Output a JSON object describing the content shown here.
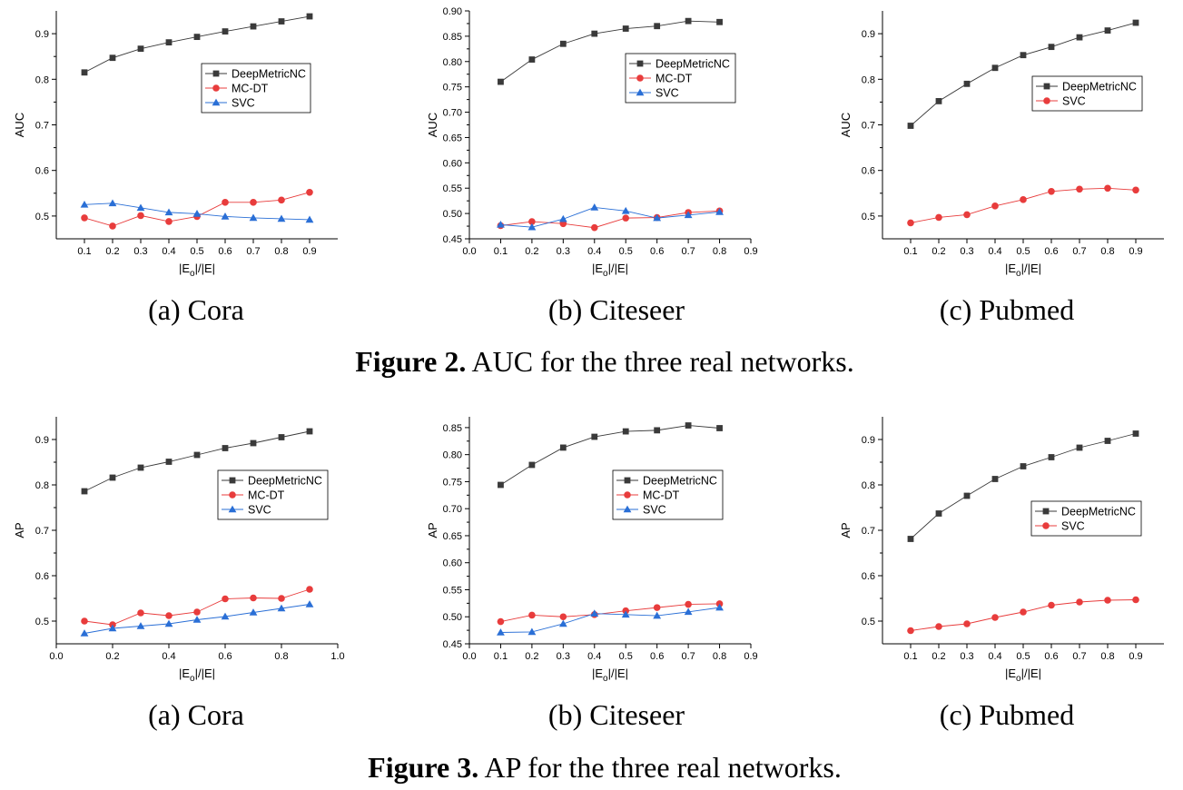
{
  "colors": {
    "DeepMetricNC": "#3a3a3a",
    "MC-DT": "#e83c3c",
    "SVC": "#2a6fd6"
  },
  "figures": [
    {
      "label": "Figure 2.",
      "text": " AUC for the three real networks.",
      "subcaptions": [
        "(a)  Cora",
        "(b)  Citeseer",
        "(c) Pubmed"
      ]
    },
    {
      "label": "Figure 3.",
      "text": " AP for the three real networks.",
      "subcaptions": [
        "(a)  Cora",
        "(b)  Citeseer",
        "(c) Pubmed"
      ]
    }
  ],
  "chart_data": [
    {
      "type": "line",
      "panel": "Figure 2 (a) Cora",
      "ylabel": "AUC",
      "xlabel": "|E_o|/|E|",
      "xlim": [
        0.0,
        1.0
      ],
      "ylim": [
        0.45,
        0.95
      ],
      "xticks": [
        "0.1",
        "0.2",
        "0.3",
        "0.4",
        "0.5",
        "0.6",
        "0.7",
        "0.8",
        "0.9"
      ],
      "yticks": [
        "0.5",
        "0.6",
        "0.7",
        "0.8",
        "0.9"
      ],
      "legend": "center-right",
      "x": [
        0.1,
        0.2,
        0.3,
        0.4,
        0.5,
        0.6,
        0.7,
        0.8,
        0.9
      ],
      "series": [
        {
          "name": "DeepMetricNC",
          "marker": "square",
          "values": [
            0.815,
            0.847,
            0.867,
            0.881,
            0.893,
            0.905,
            0.916,
            0.927,
            0.938
          ]
        },
        {
          "name": "MC-DT",
          "marker": "circle",
          "values": [
            0.496,
            0.478,
            0.501,
            0.488,
            0.499,
            0.53,
            0.53,
            0.535,
            0.552
          ]
        },
        {
          "name": "SVC",
          "marker": "triangle",
          "values": [
            0.525,
            0.528,
            0.518,
            0.508,
            0.505,
            0.499,
            0.496,
            0.494,
            0.492
          ]
        }
      ]
    },
    {
      "type": "line",
      "panel": "Figure 2 (b) Citeseer",
      "ylabel": "AUC",
      "xlabel": "|E_o|/|E|",
      "xlim": [
        0.0,
        0.9
      ],
      "ylim": [
        0.45,
        0.9
      ],
      "xticks": [
        "0.0",
        "0.1",
        "0.2",
        "0.3",
        "0.4",
        "0.5",
        "0.6",
        "0.7",
        "0.8",
        "0.9"
      ],
      "yticks": [
        "0.45",
        "0.50",
        "0.55",
        "0.60",
        "0.65",
        "0.70",
        "0.75",
        "0.80",
        "0.85",
        "0.90"
      ],
      "legend": "center-right",
      "x": [
        0.1,
        0.2,
        0.3,
        0.4,
        0.5,
        0.6,
        0.7,
        0.8
      ],
      "series": [
        {
          "name": "DeepMetricNC",
          "marker": "square",
          "values": [
            0.76,
            0.804,
            0.835,
            0.855,
            0.865,
            0.87,
            0.88,
            0.878
          ]
        },
        {
          "name": "MC-DT",
          "marker": "circle",
          "values": [
            0.476,
            0.484,
            0.48,
            0.472,
            0.491,
            0.492,
            0.502,
            0.505
          ]
        },
        {
          "name": "SVC",
          "marker": "triangle",
          "values": [
            0.478,
            0.473,
            0.489,
            0.512,
            0.505,
            0.491,
            0.497,
            0.503
          ]
        }
      ]
    },
    {
      "type": "line",
      "panel": "Figure 2 (c) Pubmed",
      "ylabel": "AUC",
      "xlabel": "|E_o|/|E|",
      "xlim": [
        0.0,
        1.0
      ],
      "ylim": [
        0.45,
        0.95
      ],
      "xticks": [
        "0.1",
        "0.2",
        "0.3",
        "0.4",
        "0.5",
        "0.6",
        "0.7",
        "0.8",
        "0.9"
      ],
      "yticks": [
        "0.5",
        "0.6",
        "0.7",
        "0.8",
        "0.9"
      ],
      "legend": "upper-right",
      "x": [
        0.1,
        0.2,
        0.3,
        0.4,
        0.5,
        0.6,
        0.7,
        0.8,
        0.9
      ],
      "series": [
        {
          "name": "DeepMetricNC",
          "marker": "square",
          "values": [
            0.698,
            0.752,
            0.79,
            0.825,
            0.853,
            0.871,
            0.892,
            0.907,
            0.924
          ]
        },
        {
          "name": "SVC",
          "marker": "circle",
          "color": "MC-DT",
          "values": [
            0.485,
            0.497,
            0.503,
            0.522,
            0.536,
            0.554,
            0.559,
            0.561,
            0.557
          ]
        }
      ]
    },
    {
      "type": "line",
      "panel": "Figure 3 (a) Cora",
      "ylabel": "AP",
      "xlabel": "|E_o|/|E|",
      "xlim": [
        0.0,
        1.0
      ],
      "ylim": [
        0.45,
        0.95
      ],
      "xticks": [
        "0.0",
        "0.2",
        "0.4",
        "0.6",
        "0.8",
        "1.0"
      ],
      "yticks": [
        "0.5",
        "0.6",
        "0.7",
        "0.8",
        "0.9"
      ],
      "legend": "center-right",
      "x": [
        0.1,
        0.2,
        0.3,
        0.4,
        0.5,
        0.6,
        0.7,
        0.8,
        0.9
      ],
      "series": [
        {
          "name": "DeepMetricNC",
          "marker": "square",
          "values": [
            0.786,
            0.816,
            0.838,
            0.851,
            0.866,
            0.881,
            0.892,
            0.905,
            0.918
          ]
        },
        {
          "name": "MC-DT",
          "marker": "circle",
          "values": [
            0.5,
            0.492,
            0.518,
            0.512,
            0.52,
            0.549,
            0.551,
            0.55,
            0.57
          ]
        },
        {
          "name": "SVC",
          "marker": "triangle",
          "values": [
            0.473,
            0.484,
            0.489,
            0.494,
            0.503,
            0.51,
            0.519,
            0.528,
            0.537
          ]
        }
      ]
    },
    {
      "type": "line",
      "panel": "Figure 3 (b) Citeseer",
      "ylabel": "AP",
      "xlabel": "|E_o|/|E|",
      "xlim": [
        0.0,
        0.9
      ],
      "ylim": [
        0.45,
        0.87
      ],
      "xticks": [
        "0.0",
        "0.1",
        "0.2",
        "0.3",
        "0.4",
        "0.5",
        "0.6",
        "0.7",
        "0.8",
        "0.9"
      ],
      "yticks": [
        "0.45",
        "0.50",
        "0.55",
        "0.60",
        "0.65",
        "0.70",
        "0.75",
        "0.80",
        "0.85"
      ],
      "legend": "center-right",
      "x": [
        0.1,
        0.2,
        0.3,
        0.4,
        0.5,
        0.6,
        0.7,
        0.8
      ],
      "series": [
        {
          "name": "DeepMetricNC",
          "marker": "square",
          "values": [
            0.744,
            0.781,
            0.813,
            0.833,
            0.843,
            0.845,
            0.854,
            0.849
          ]
        },
        {
          "name": "MC-DT",
          "marker": "circle",
          "values": [
            0.491,
            0.503,
            0.5,
            0.504,
            0.511,
            0.517,
            0.523,
            0.524
          ]
        },
        {
          "name": "SVC",
          "marker": "triangle",
          "values": [
            0.471,
            0.472,
            0.487,
            0.506,
            0.504,
            0.502,
            0.509,
            0.517
          ]
        }
      ]
    },
    {
      "type": "line",
      "panel": "Figure 3 (c) Pubmed",
      "ylabel": "AP",
      "xlabel": "|E_o|/|E|",
      "xlim": [
        0.0,
        1.0
      ],
      "ylim": [
        0.45,
        0.95
      ],
      "xticks": [
        "0.1",
        "0.2",
        "0.3",
        "0.4",
        "0.5",
        "0.6",
        "0.7",
        "0.8",
        "0.9"
      ],
      "yticks": [
        "0.5",
        "0.6",
        "0.7",
        "0.8",
        "0.9"
      ],
      "legend": "center-right",
      "x": [
        0.1,
        0.2,
        0.3,
        0.4,
        0.5,
        0.6,
        0.7,
        0.8,
        0.9
      ],
      "series": [
        {
          "name": "DeepMetricNC",
          "marker": "square",
          "values": [
            0.681,
            0.737,
            0.776,
            0.813,
            0.841,
            0.861,
            0.882,
            0.897,
            0.913
          ]
        },
        {
          "name": "SVC",
          "marker": "circle",
          "color": "MC-DT",
          "values": [
            0.479,
            0.488,
            0.494,
            0.508,
            0.52,
            0.535,
            0.542,
            0.546,
            0.547
          ]
        }
      ]
    }
  ]
}
